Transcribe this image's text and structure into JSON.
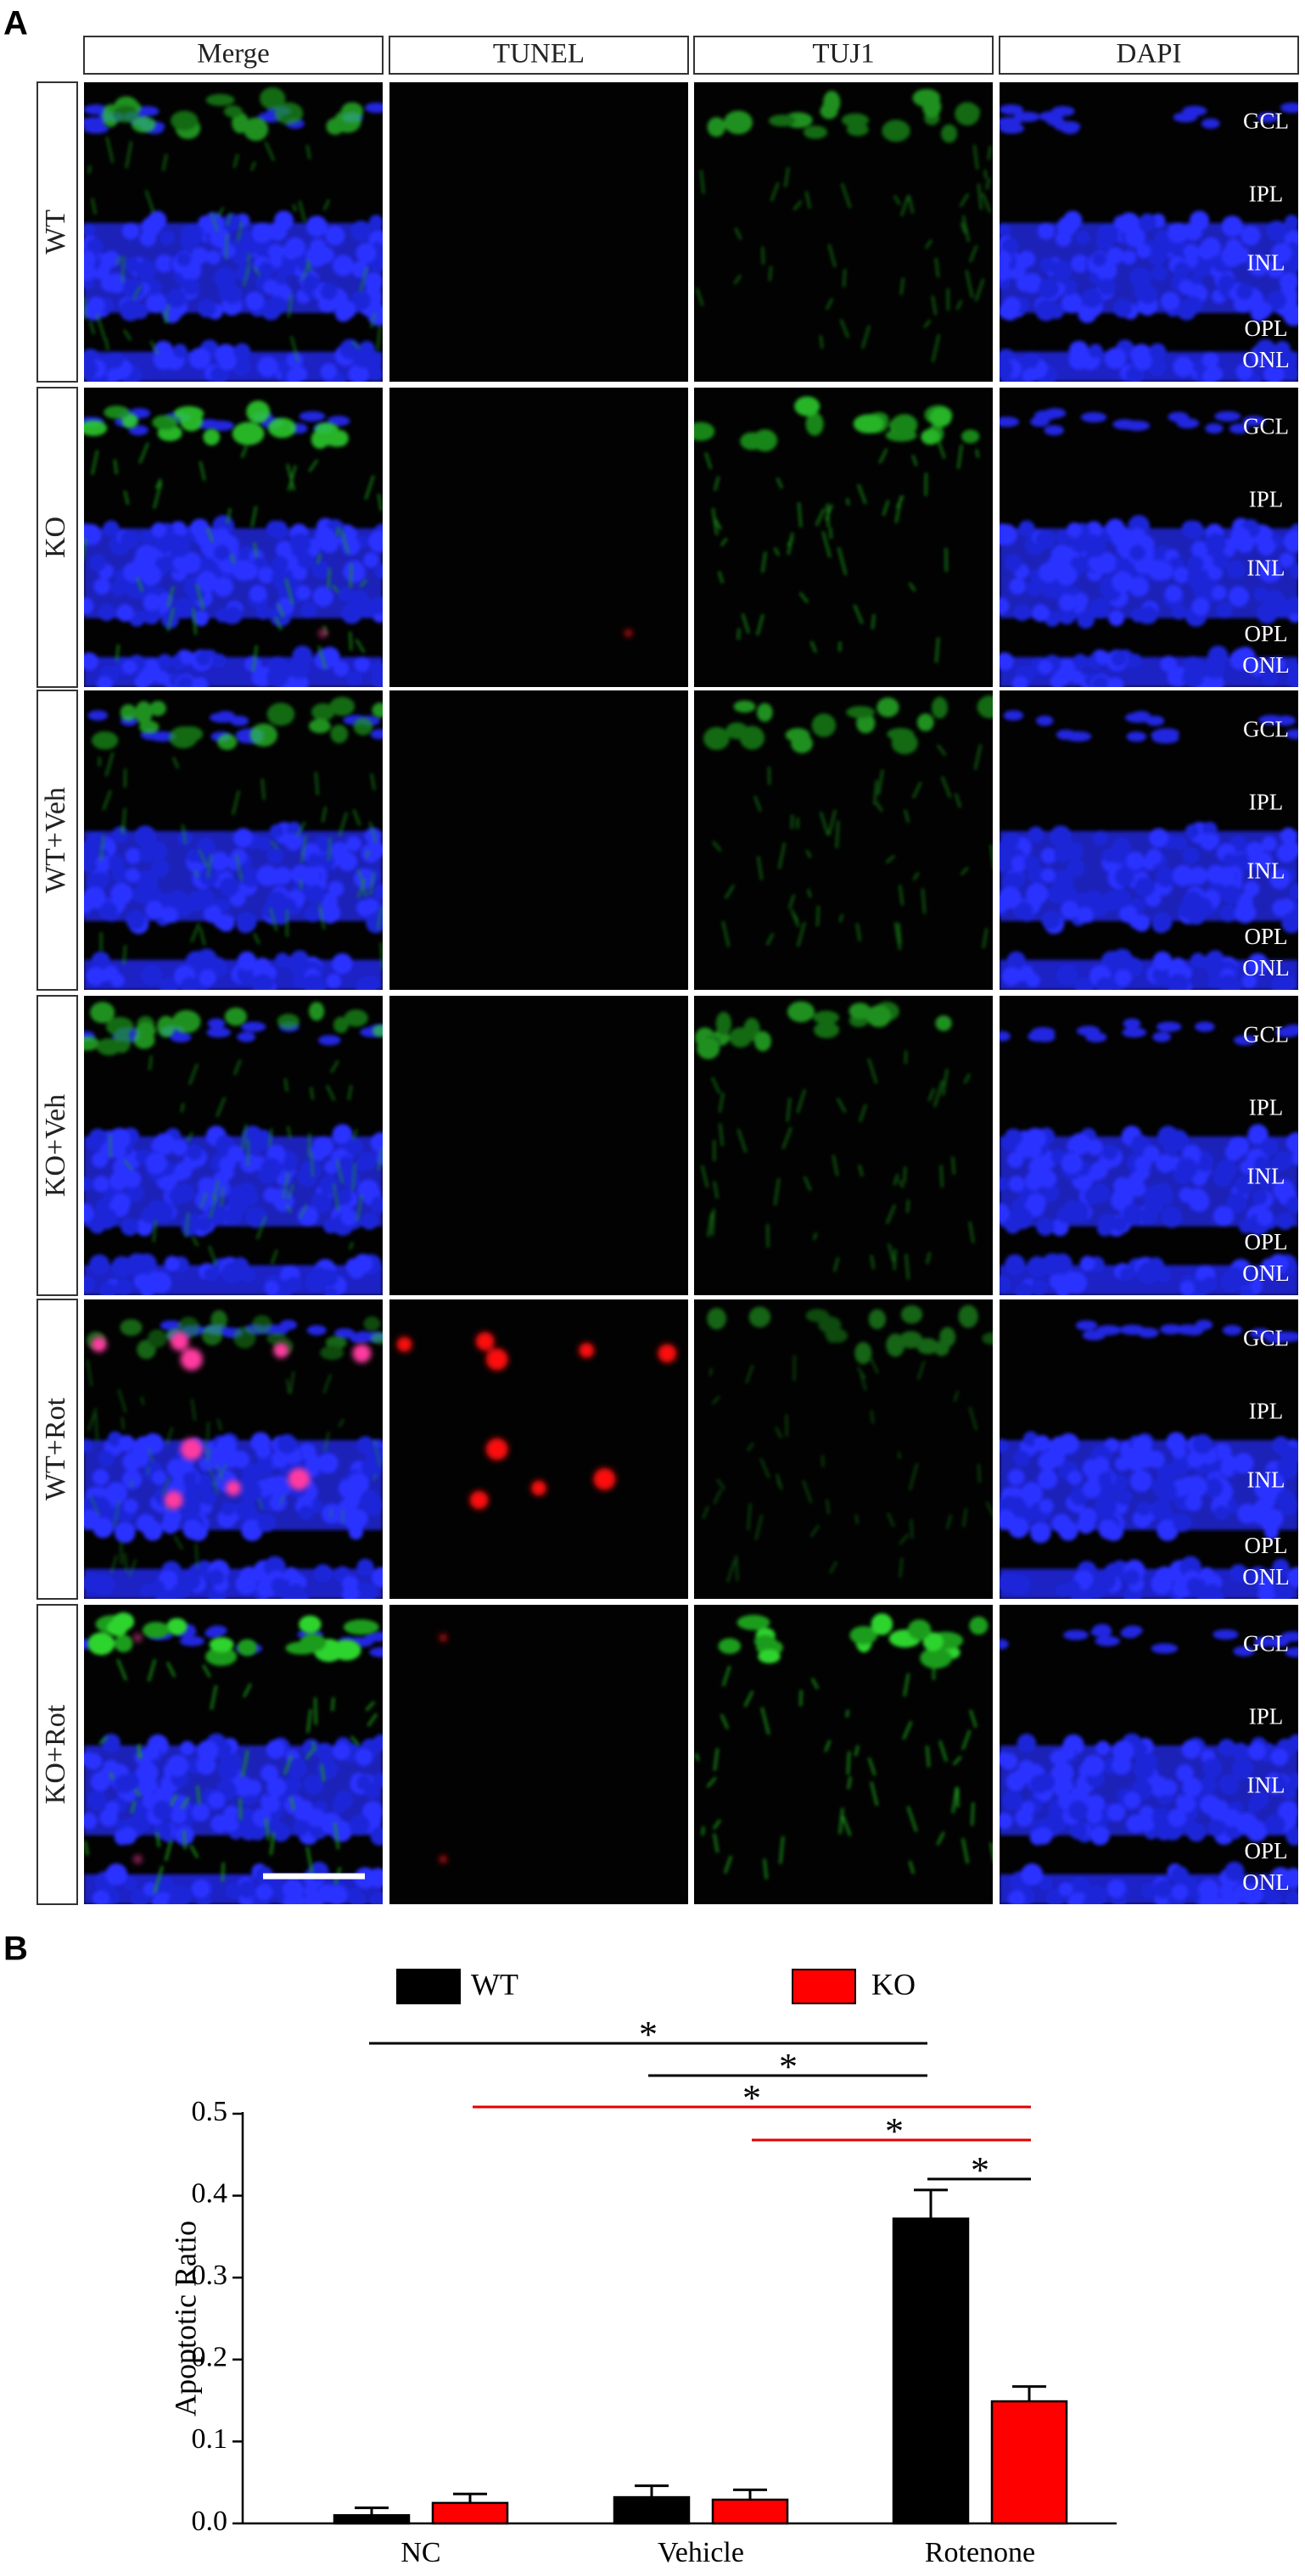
{
  "panel_labels": [
    "A",
    "B"
  ],
  "panel_a": {
    "columns": [
      "Merge",
      "TUNEL",
      "TUJ1",
      "DAPI"
    ],
    "rows": [
      "WT",
      "KO",
      "WT+Veh",
      "KO+Veh",
      "WT+Rot",
      "KO+Rot"
    ],
    "layers": [
      "GCL",
      "IPL",
      "INL",
      "OPL",
      "ONL"
    ]
  },
  "chart_data": {
    "type": "bar",
    "categories": [
      "NC",
      "Vehicle",
      "Rotenone"
    ],
    "series": [
      {
        "name": "WT",
        "color": "#000000",
        "values": [
          0.01,
          0.032,
          0.372
        ],
        "errors": [
          0.009,
          0.014,
          0.035
        ]
      },
      {
        "name": "KO",
        "color": "#ff0000",
        "values": [
          0.025,
          0.029,
          0.149
        ],
        "errors": [
          0.011,
          0.012,
          0.018
        ]
      }
    ],
    "y_label": "Apoptotic Ratio",
    "ylim": [
      0,
      0.5
    ],
    "yticks": [
      {
        "value": 0,
        "label": "0.0"
      },
      0.1,
      0.2,
      0.3,
      0.4,
      0.5
    ],
    "annotations": [
      "*",
      "*",
      "*",
      "*",
      "*"
    ],
    "legend": "top"
  }
}
